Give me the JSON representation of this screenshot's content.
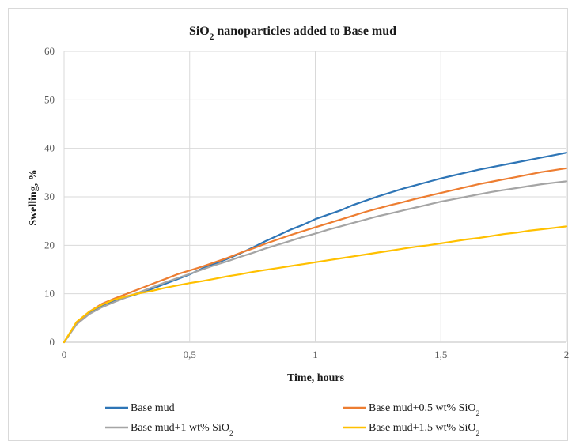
{
  "chart_data": {
    "type": "line",
    "title": "SiO₂ nanoparticles added to Base mud",
    "xlabel": "Time, hours",
    "ylabel": "Swelling, %",
    "xlim": [
      0,
      2
    ],
    "ylim": [
      0,
      60
    ],
    "x_ticks": [
      "0",
      "0,5",
      "1",
      "1,5",
      "2"
    ],
    "y_ticks": [
      "0",
      "10",
      "20",
      "30",
      "40",
      "50",
      "60"
    ],
    "grid": "vertical and horizontal major gridlines",
    "legend_position": "bottom",
    "series": [
      {
        "name": "Base mud",
        "color": "#2e75b6",
        "x": [
          0,
          0.05,
          0.1,
          0.15,
          0.2,
          0.25,
          0.3,
          0.35,
          0.4,
          0.45,
          0.5,
          0.55,
          0.6,
          0.65,
          0.7,
          0.75,
          0.8,
          0.85,
          0.9,
          0.95,
          1.0,
          1.05,
          1.1,
          1.15,
          1.2,
          1.25,
          1.3,
          1.35,
          1.4,
          1.45,
          1.5,
          1.55,
          1.6,
          1.65,
          1.7,
          1.75,
          1.8,
          1.85,
          1.9,
          1.95,
          2.0
        ],
        "values": [
          0,
          3.8,
          6.0,
          7.4,
          8.5,
          9.3,
          10.1,
          11.0,
          12.0,
          13.0,
          14.0,
          15.2,
          16.2,
          17.2,
          18.3,
          19.5,
          20.8,
          22.0,
          23.2,
          24.2,
          25.4,
          26.3,
          27.2,
          28.3,
          29.2,
          30.1,
          30.9,
          31.7,
          32.4,
          33.1,
          33.8,
          34.4,
          35.0,
          35.6,
          36.1,
          36.6,
          37.1,
          37.6,
          38.1,
          38.6,
          39.1
        ]
      },
      {
        "name": "Base mud+0.5 wt% SiO₂",
        "color": "#ed7d31",
        "x": [
          0,
          0.05,
          0.1,
          0.15,
          0.2,
          0.25,
          0.3,
          0.35,
          0.4,
          0.45,
          0.5,
          0.55,
          0.6,
          0.65,
          0.7,
          0.75,
          0.8,
          0.85,
          0.9,
          0.95,
          1.0,
          1.05,
          1.1,
          1.15,
          1.2,
          1.25,
          1.3,
          1.35,
          1.4,
          1.45,
          1.5,
          1.55,
          1.6,
          1.65,
          1.7,
          1.75,
          1.8,
          1.85,
          1.9,
          1.95,
          2.0
        ],
        "values": [
          0,
          4.0,
          6.3,
          7.9,
          9.0,
          10.0,
          11.0,
          12.0,
          13.0,
          14.0,
          14.8,
          15.6,
          16.5,
          17.4,
          18.4,
          19.3,
          20.3,
          21.2,
          22.1,
          22.9,
          23.7,
          24.5,
          25.3,
          26.1,
          26.9,
          27.6,
          28.3,
          28.9,
          29.6,
          30.2,
          30.8,
          31.4,
          32.0,
          32.6,
          33.1,
          33.6,
          34.1,
          34.6,
          35.1,
          35.5,
          35.9
        ]
      },
      {
        "name": "Base mud+1 wt% SiO₂",
        "color": "#a5a5a5",
        "x": [
          0,
          0.05,
          0.1,
          0.15,
          0.2,
          0.25,
          0.3,
          0.35,
          0.4,
          0.45,
          0.5,
          0.55,
          0.6,
          0.65,
          0.7,
          0.75,
          0.8,
          0.85,
          0.9,
          0.95,
          1.0,
          1.05,
          1.1,
          1.15,
          1.2,
          1.25,
          1.3,
          1.35,
          1.4,
          1.45,
          1.5,
          1.55,
          1.6,
          1.65,
          1.7,
          1.75,
          1.8,
          1.85,
          1.9,
          1.95,
          2.0
        ],
        "values": [
          0,
          3.7,
          5.8,
          7.2,
          8.3,
          9.3,
          10.3,
          11.3,
          12.3,
          13.2,
          14.1,
          15.0,
          15.9,
          16.7,
          17.6,
          18.4,
          19.3,
          20.1,
          20.9,
          21.7,
          22.4,
          23.2,
          23.9,
          24.6,
          25.3,
          26.0,
          26.6,
          27.2,
          27.8,
          28.4,
          29.0,
          29.5,
          30.0,
          30.5,
          31.0,
          31.4,
          31.8,
          32.2,
          32.6,
          32.9,
          33.2
        ]
      },
      {
        "name": "Base mud+1.5 wt% SiO₂",
        "color": "#ffc000",
        "x": [
          0,
          0.05,
          0.1,
          0.15,
          0.2,
          0.25,
          0.3,
          0.35,
          0.4,
          0.45,
          0.5,
          0.55,
          0.6,
          0.65,
          0.7,
          0.75,
          0.8,
          0.85,
          0.9,
          0.95,
          1.0,
          1.05,
          1.1,
          1.15,
          1.2,
          1.25,
          1.3,
          1.35,
          1.4,
          1.45,
          1.5,
          1.55,
          1.6,
          1.65,
          1.7,
          1.75,
          1.8,
          1.85,
          1.9,
          1.95,
          2.0
        ],
        "values": [
          0,
          4.2,
          6.3,
          7.7,
          8.8,
          9.5,
          10.1,
          10.6,
          11.2,
          11.7,
          12.2,
          12.6,
          13.1,
          13.6,
          14.0,
          14.5,
          14.9,
          15.3,
          15.7,
          16.1,
          16.5,
          16.9,
          17.3,
          17.7,
          18.1,
          18.5,
          18.9,
          19.3,
          19.7,
          20.0,
          20.4,
          20.8,
          21.2,
          21.5,
          21.9,
          22.3,
          22.6,
          23.0,
          23.3,
          23.6,
          23.9
        ]
      }
    ]
  }
}
